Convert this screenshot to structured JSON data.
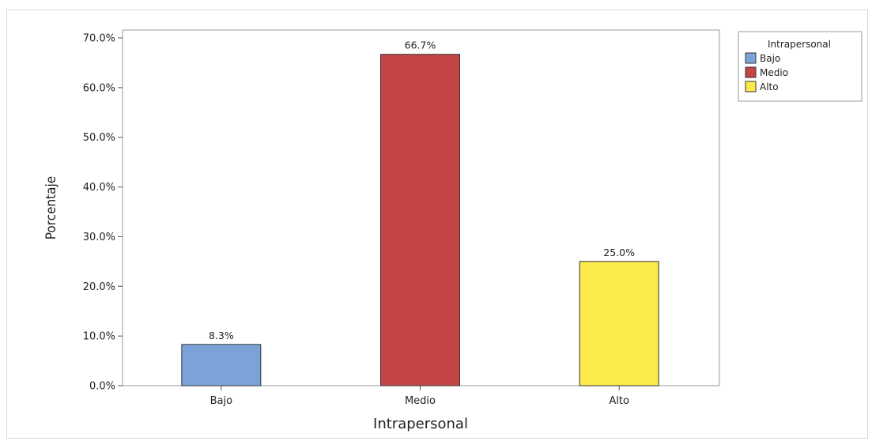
{
  "chart_data": {
    "type": "bar",
    "categories": [
      "Bajo",
      "Medio",
      "Alto"
    ],
    "values": [
      8.3,
      66.7,
      25.0
    ],
    "data_labels": [
      "8.3%",
      "66.7%",
      "25.0%"
    ],
    "colors": [
      "#7ba3d8",
      "#c44444",
      "#fce94a"
    ],
    "xlabel": "Intrapersonal",
    "ylabel": "Porcentaje",
    "ylim": [
      0,
      70
    ],
    "yticks": [
      0,
      10,
      20,
      30,
      40,
      50,
      60,
      70
    ],
    "ytick_labels": [
      "0.0%",
      "10.0%",
      "20.0%",
      "30.0%",
      "40.0%",
      "50.0%",
      "60.0%",
      "70.0%"
    ],
    "grid": false,
    "legend": {
      "title": "Intrapersonal",
      "placement": "top-right",
      "entries": [
        "Bajo",
        "Medio",
        "Alto"
      ]
    }
  }
}
